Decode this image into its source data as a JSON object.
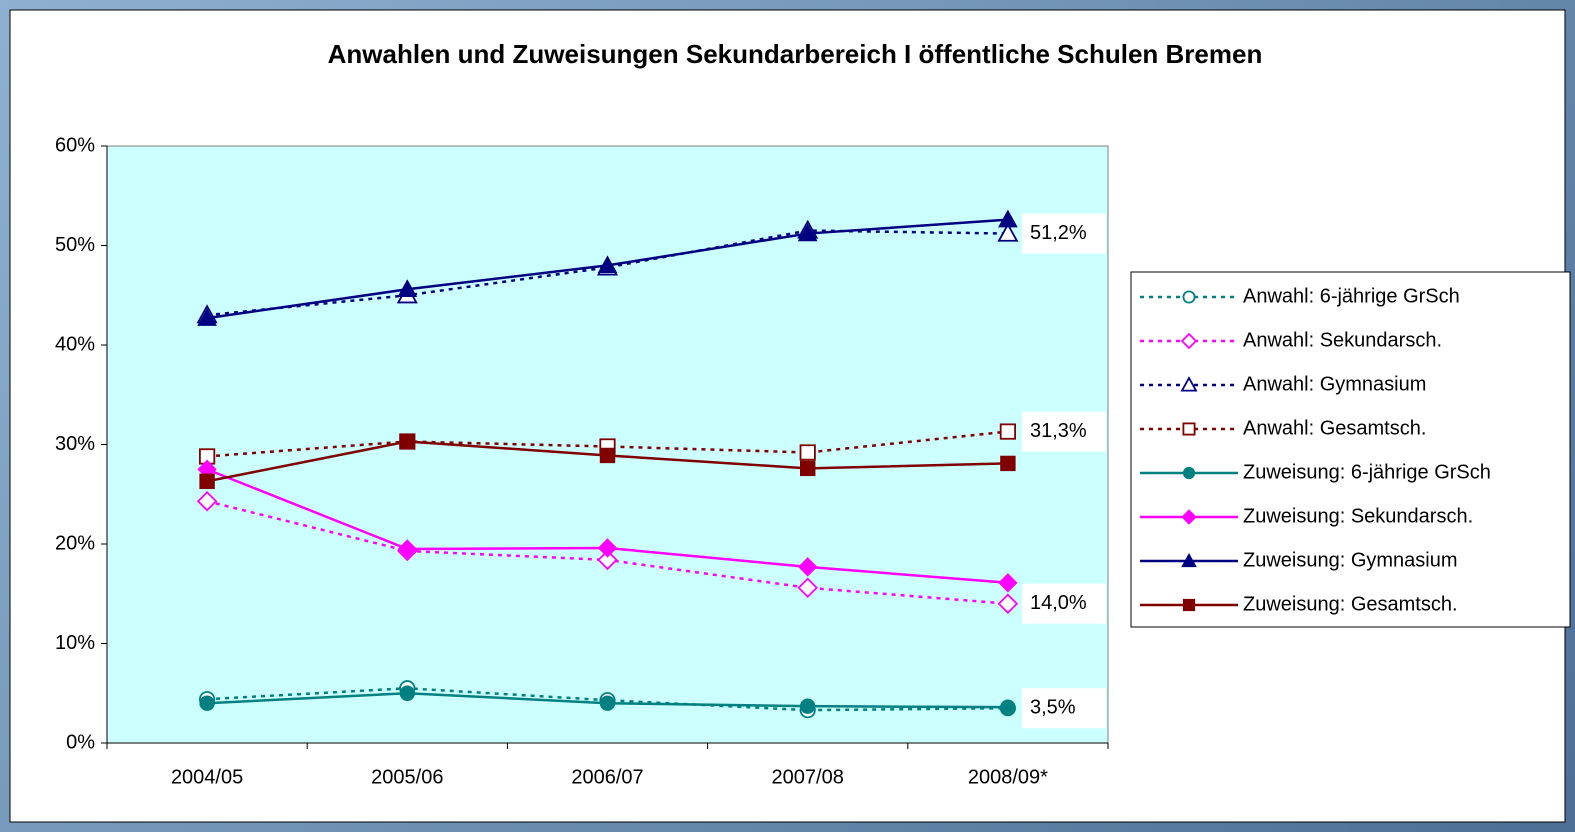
{
  "chart_data": {
    "type": "line",
    "title": "Anwahlen und Zuweisungen Sekundarbereich I öffentliche Schulen Bremen",
    "categories": [
      "2004/05",
      "2005/06",
      "2006/07",
      "2007/08",
      "2008/09*"
    ],
    "ylim": [
      0,
      60
    ],
    "yticks": [
      {
        "value": 0,
        "label": "0%"
      },
      {
        "value": 10,
        "label": "10%"
      },
      {
        "value": 20,
        "label": "20%"
      },
      {
        "value": 30,
        "label": "30%"
      },
      {
        "value": 40,
        "label": "40%"
      },
      {
        "value": 50,
        "label": "50%"
      },
      {
        "value": 60,
        "label": "60%"
      }
    ],
    "grid": false,
    "legend": "right",
    "plot_background": "#ccffff",
    "series": [
      {
        "name": "Anwahl: 6-jährige GrSch",
        "color": "#008080",
        "style": "dotted",
        "marker": "circle",
        "filled": false,
        "values": [
          4.4,
          5.5,
          4.3,
          3.3,
          3.5
        ],
        "value_labels": [
          null,
          null,
          null,
          null,
          "3,5%"
        ]
      },
      {
        "name": "Anwahl: Sekundarsch.",
        "color": "#ff00ff",
        "style": "dotted",
        "marker": "diamond",
        "filled": false,
        "values": [
          24.3,
          19.3,
          18.4,
          15.6,
          14.0
        ],
        "value_labels": [
          null,
          null,
          null,
          null,
          "14,0%"
        ]
      },
      {
        "name": "Anwahl: Gymnasium",
        "color": "#000080",
        "style": "dotted",
        "marker": "triangle",
        "filled": false,
        "values": [
          43.0,
          45.0,
          47.8,
          51.5,
          51.2
        ],
        "value_labels": [
          null,
          null,
          null,
          null,
          "51,2%"
        ]
      },
      {
        "name": "Anwahl: Gesamtsch.",
        "color": "#800000",
        "style": "dotted",
        "marker": "square",
        "filled": false,
        "values": [
          28.8,
          30.3,
          29.8,
          29.2,
          31.3
        ],
        "value_labels": [
          null,
          null,
          null,
          null,
          "31,3%"
        ]
      },
      {
        "name": "Zuweisung: 6-jährige GrSch",
        "color": "#008080",
        "style": "solid",
        "marker": "circle",
        "filled": true,
        "values": [
          4.0,
          5.0,
          4.0,
          3.7,
          3.6
        ]
      },
      {
        "name": "Zuweisung: Sekundarsch.",
        "color": "#ff00ff",
        "style": "solid",
        "marker": "diamond",
        "filled": true,
        "values": [
          27.5,
          19.5,
          19.6,
          17.7,
          16.1
        ]
      },
      {
        "name": "Zuweisung: Gymnasium",
        "color": "#000080",
        "style": "solid",
        "marker": "triangle",
        "filled": true,
        "values": [
          42.7,
          45.6,
          48.0,
          51.2,
          52.6
        ]
      },
      {
        "name": "Zuweisung: Gesamtsch.",
        "color": "#800000",
        "style": "solid",
        "marker": "square",
        "filled": true,
        "values": [
          26.3,
          30.3,
          28.9,
          27.6,
          28.1
        ]
      }
    ]
  }
}
